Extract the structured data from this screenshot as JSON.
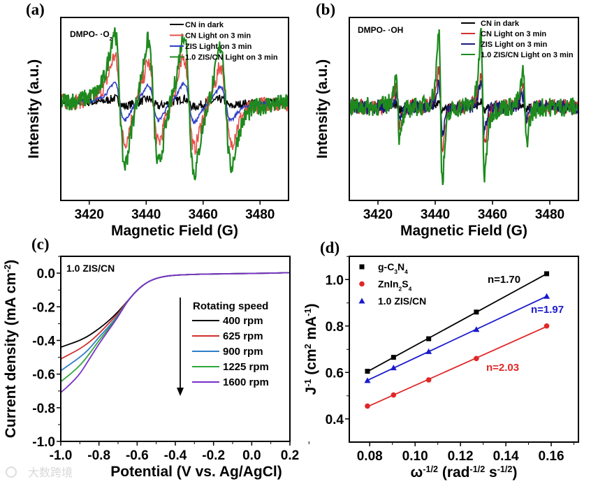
{
  "chart_data": [
    {
      "panel": "(a)",
      "type": "line",
      "title": "DMPO- ·O2-",
      "annotation": [
        {
          "t": "DMPO- ·O"
        },
        {
          "t": "2",
          "s": "sub"
        },
        {
          "t": "-",
          "s": "sup"
        }
      ],
      "xlabel": [
        {
          "t": "Magnetic Field (G)"
        }
      ],
      "ylabel": [
        {
          "t": "Intensity (a.u.)"
        }
      ],
      "xlim": [
        3410,
        3490
      ],
      "ylim": [
        -1.15,
        1.0
      ],
      "xticks": [
        3420,
        3440,
        3460,
        3480
      ],
      "line_centers_G": [
        3430.7,
        3442.5,
        3455.1,
        3468.0
      ],
      "line_intensities": [
        0.95,
        0.9,
        1.0,
        0.85
      ],
      "linewidth_G": 3.2,
      "series": [
        {
          "name": "CN in dark",
          "color": "#000000",
          "amplitude": 0.05
        },
        {
          "name": "CN Light on 3 min",
          "color": "#e8504c",
          "amplitude": 0.55
        },
        {
          "name": "ZIS Light on 3 min",
          "color": "#2f3fc8",
          "amplitude": 0.24
        },
        {
          "name": "1.0 ZIS/CN Light on 3 min",
          "color": "#1e8a1e",
          "amplitude": 0.85
        }
      ]
    },
    {
      "panel": "(b)",
      "type": "line",
      "title": "DMPO- ·OH",
      "annotation": [
        {
          "t": "DMPO-  ·OH"
        }
      ],
      "xlabel": [
        {
          "t": "Magnetic Field (G)"
        }
      ],
      "ylabel": [
        {
          "t": "Intensity (a.u.)"
        }
      ],
      "xlim": [
        3410,
        3490
      ],
      "ylim": [
        -1.1,
        1.05
      ],
      "xticks": [
        3420,
        3440,
        3460,
        3480
      ],
      "line_centers_G": [
        3427.0,
        3441.9,
        3456.6,
        3471.3
      ],
      "line_intensities": [
        0.45,
        1.0,
        0.95,
        0.45
      ],
      "linewidth_G": 1.1,
      "series": [
        {
          "name": "CN in dark",
          "color": "#000000",
          "amplitude": 0.06
        },
        {
          "name": "CN Light on 3 min",
          "color": "#d03030",
          "amplitude": 0.45
        },
        {
          "name": "ZIS Light on 3 min",
          "color": "#1a1a7a",
          "amplitude": 0.3
        },
        {
          "name": "1.0 ZIS/CN Light on 3 min",
          "color": "#1e8a1e",
          "amplitude": 0.9
        }
      ]
    },
    {
      "panel": "(c)",
      "type": "line",
      "title": "1.0 ZIS/CN",
      "xlabel": [
        {
          "t": "Potential (V vs. Ag/AgCl)"
        }
      ],
      "ylabel": [
        {
          "t": "Current density (mA cm"
        },
        {
          "t": "-2",
          "s": "sup"
        },
        {
          "t": ")"
        }
      ],
      "xlim": [
        -1.0,
        0.2
      ],
      "ylim": [
        -1.0,
        0.1
      ],
      "xticks": [
        "-1.0",
        "-0.8",
        "-0.6",
        "-0.4",
        "-0.2",
        "0.0",
        "0.2"
      ],
      "yticks": [
        "0.0",
        "-0.2",
        "-0.4",
        "-0.6",
        "-0.8",
        "-1.0"
      ],
      "legend_title": "Rotating speed",
      "x": [
        -1.0,
        -0.95,
        -0.9,
        -0.85,
        -0.8,
        -0.75,
        -0.7,
        -0.65,
        -0.6,
        -0.55,
        -0.5,
        -0.45,
        -0.4,
        -0.3,
        -0.2,
        -0.1,
        0.0,
        0.1,
        0.2
      ],
      "series": [
        {
          "name": "400 rpm",
          "color": "#000000",
          "values": [
            -0.44,
            -0.42,
            -0.4,
            -0.37,
            -0.33,
            -0.285,
            -0.23,
            -0.165,
            -0.1,
            -0.055,
            -0.03,
            -0.018,
            -0.012,
            -0.007,
            -0.005,
            -0.003,
            -0.002,
            0.0,
            0.003
          ]
        },
        {
          "name": "625 rpm",
          "color": "#d03030",
          "values": [
            -0.51,
            -0.48,
            -0.45,
            -0.41,
            -0.36,
            -0.3,
            -0.24,
            -0.165,
            -0.1,
            -0.055,
            -0.03,
            -0.018,
            -0.012,
            -0.007,
            -0.005,
            -0.003,
            -0.002,
            0.0,
            0.003
          ]
        },
        {
          "name": "900 rpm",
          "color": "#2f7fc8",
          "values": [
            -0.58,
            -0.54,
            -0.5,
            -0.45,
            -0.38,
            -0.32,
            -0.25,
            -0.165,
            -0.1,
            -0.055,
            -0.03,
            -0.018,
            -0.012,
            -0.007,
            -0.005,
            -0.003,
            -0.002,
            0.0,
            0.003
          ]
        },
        {
          "name": "1225 rpm",
          "color": "#2fa83a",
          "values": [
            -0.645,
            -0.6,
            -0.55,
            -0.48,
            -0.4,
            -0.33,
            -0.255,
            -0.165,
            -0.1,
            -0.055,
            -0.03,
            -0.018,
            -0.012,
            -0.007,
            -0.005,
            -0.003,
            -0.002,
            0.0,
            0.003
          ]
        },
        {
          "name": "1600 rpm",
          "color": "#7a2fc8",
          "values": [
            -0.71,
            -0.66,
            -0.6,
            -0.51,
            -0.42,
            -0.34,
            -0.26,
            -0.165,
            -0.1,
            -0.055,
            -0.03,
            -0.018,
            -0.012,
            -0.007,
            -0.005,
            -0.003,
            -0.002,
            0.0,
            0.003
          ]
        }
      ]
    },
    {
      "panel": "(d)",
      "type": "scatter",
      "xlabel": [
        {
          "t": "ω"
        },
        {
          "t": "-1/2",
          "s": "sup"
        },
        {
          "t": " (rad"
        },
        {
          "t": "-1/2",
          "s": "sup"
        },
        {
          "t": " s"
        },
        {
          "t": "-1/2",
          "s": "sup"
        },
        {
          "t": ")"
        }
      ],
      "ylabel": [
        {
          "t": "J"
        },
        {
          "t": "-1",
          "s": "sup"
        },
        {
          "t": " (cm"
        },
        {
          "t": "2",
          "s": "sup"
        },
        {
          "t": " mA"
        },
        {
          "t": "-1",
          "s": "sup"
        },
        {
          "t": ")"
        }
      ],
      "xlim": [
        0.071,
        0.172
      ],
      "ylim": [
        0.3,
        1.1
      ],
      "xticks": [
        "0.08",
        "0.10",
        "0.12",
        "0.14",
        "0.16"
      ],
      "yticks": [
        "0.4",
        "0.6",
        "0.8",
        "1.0"
      ],
      "x": [
        0.079,
        0.0905,
        0.106,
        0.127,
        0.158
      ],
      "series": [
        {
          "name": [
            {
              "t": "g-C"
            },
            {
              "t": "3",
              "s": "sub"
            },
            {
              "t": "N"
            },
            {
              "t": "4",
              "s": "sub"
            }
          ],
          "marker": "square",
          "color": "#000000",
          "values": [
            0.605,
            0.665,
            0.745,
            0.86,
            1.025
          ],
          "label": "n=1.70"
        },
        {
          "name": [
            {
              "t": "ZnIn"
            },
            {
              "t": "2",
              "s": "sub"
            },
            {
              "t": "S"
            },
            {
              "t": "4",
              "s": "sub"
            }
          ],
          "marker": "circle",
          "color": "#e02828",
          "values": [
            0.455,
            0.503,
            0.568,
            0.66,
            0.8
          ],
          "label": "n=2.03"
        },
        {
          "name": [
            {
              "t": "1.0 ZIS/CN"
            }
          ],
          "marker": "triangle",
          "color": "#1a1acc",
          "values": [
            0.565,
            0.62,
            0.69,
            0.785,
            0.928
          ],
          "label": "n=1.97"
        }
      ]
    }
  ],
  "watermark": "大数跨境"
}
